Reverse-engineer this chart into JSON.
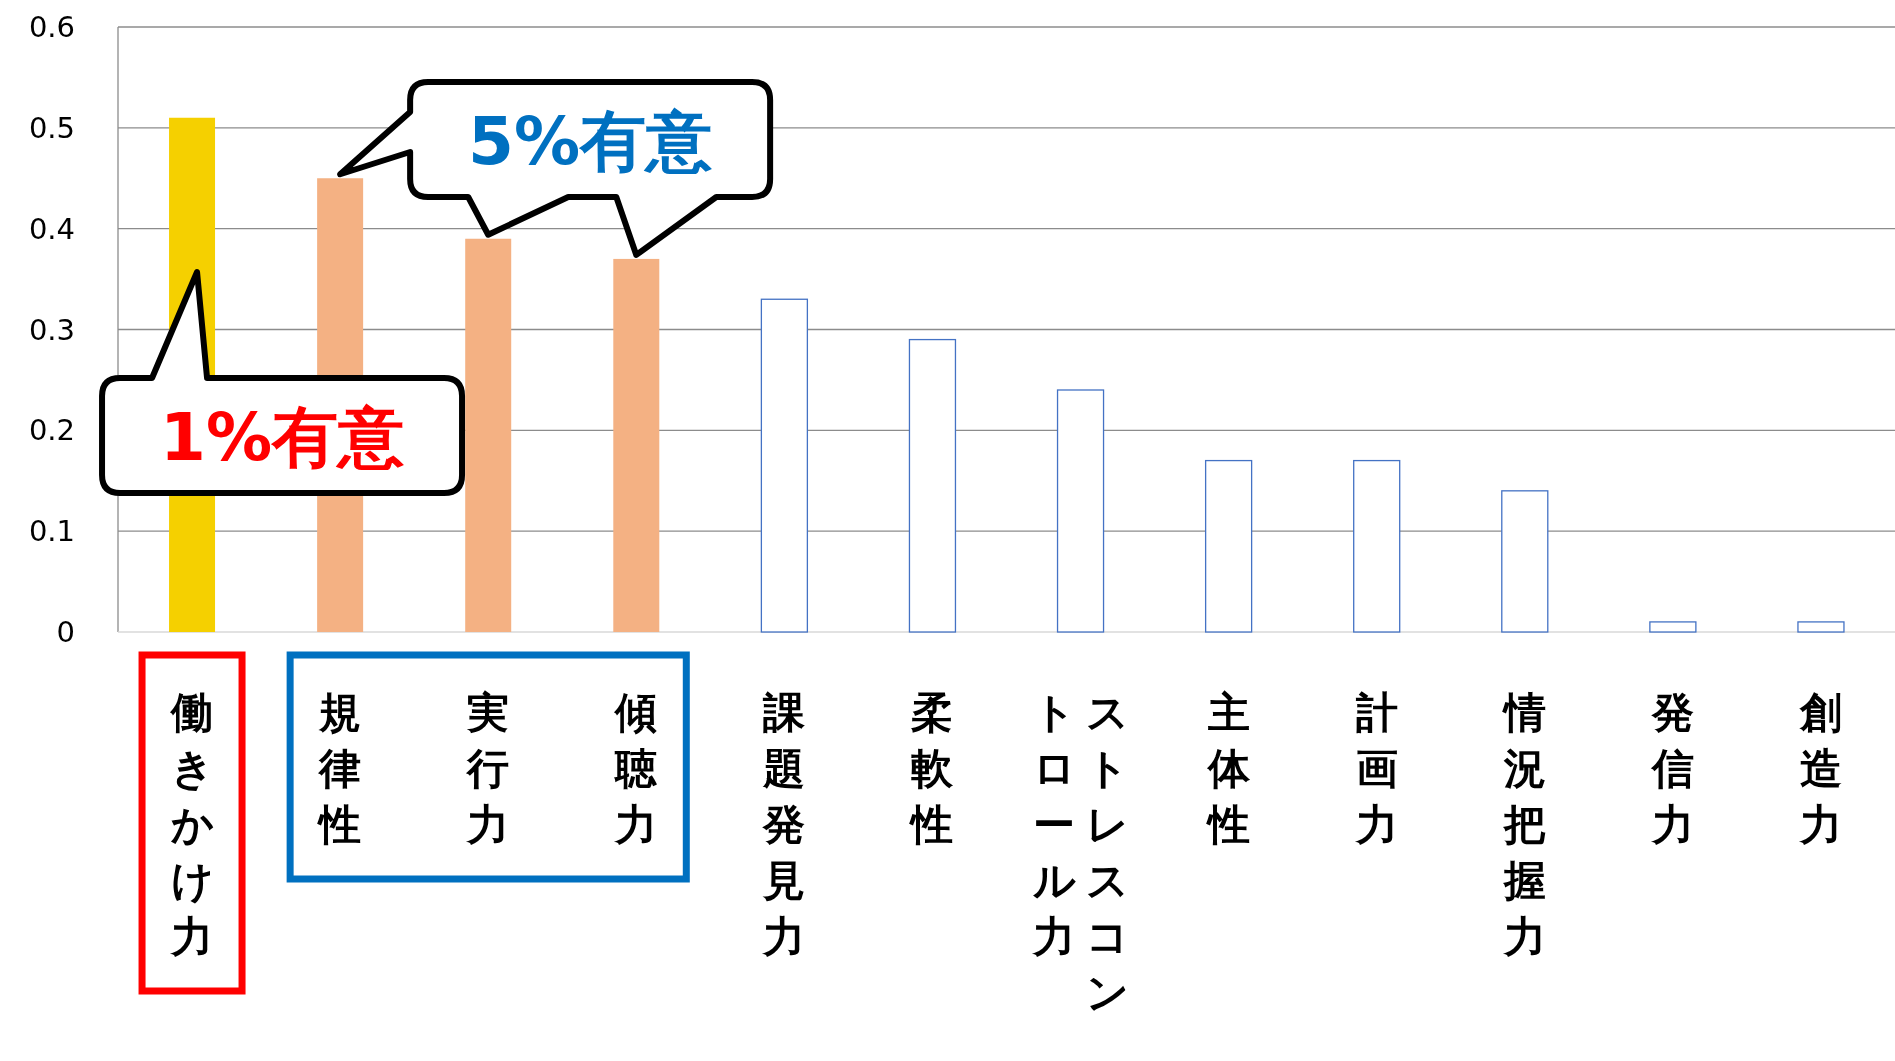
{
  "chart_data": {
    "type": "bar",
    "categories": [
      "働きかけ力",
      "規律性",
      "実行力",
      "傾聴力",
      "課題発見力",
      "柔軟性",
      "ストレスコントロール力",
      "主体性",
      "計画力",
      "情況把握力",
      "発信力",
      "創造力"
    ],
    "values": [
      0.51,
      0.45,
      0.39,
      0.37,
      0.33,
      0.29,
      0.24,
      0.17,
      0.17,
      0.14,
      0.01,
      0.01
    ],
    "colors": [
      "#f5d000",
      "#f4b183",
      "#f4b183",
      "#f4b183",
      "#ffffff",
      "#ffffff",
      "#ffffff",
      "#ffffff",
      "#ffffff",
      "#ffffff",
      "#ffffff",
      "#ffffff"
    ],
    "ylim": [
      0,
      0.6
    ],
    "yticks": [
      0,
      0.1,
      0.2,
      0.3,
      0.4,
      0.5,
      0.6
    ],
    "grid": "y",
    "annotations": [
      "1%有意",
      "5%有意"
    ]
  }
}
